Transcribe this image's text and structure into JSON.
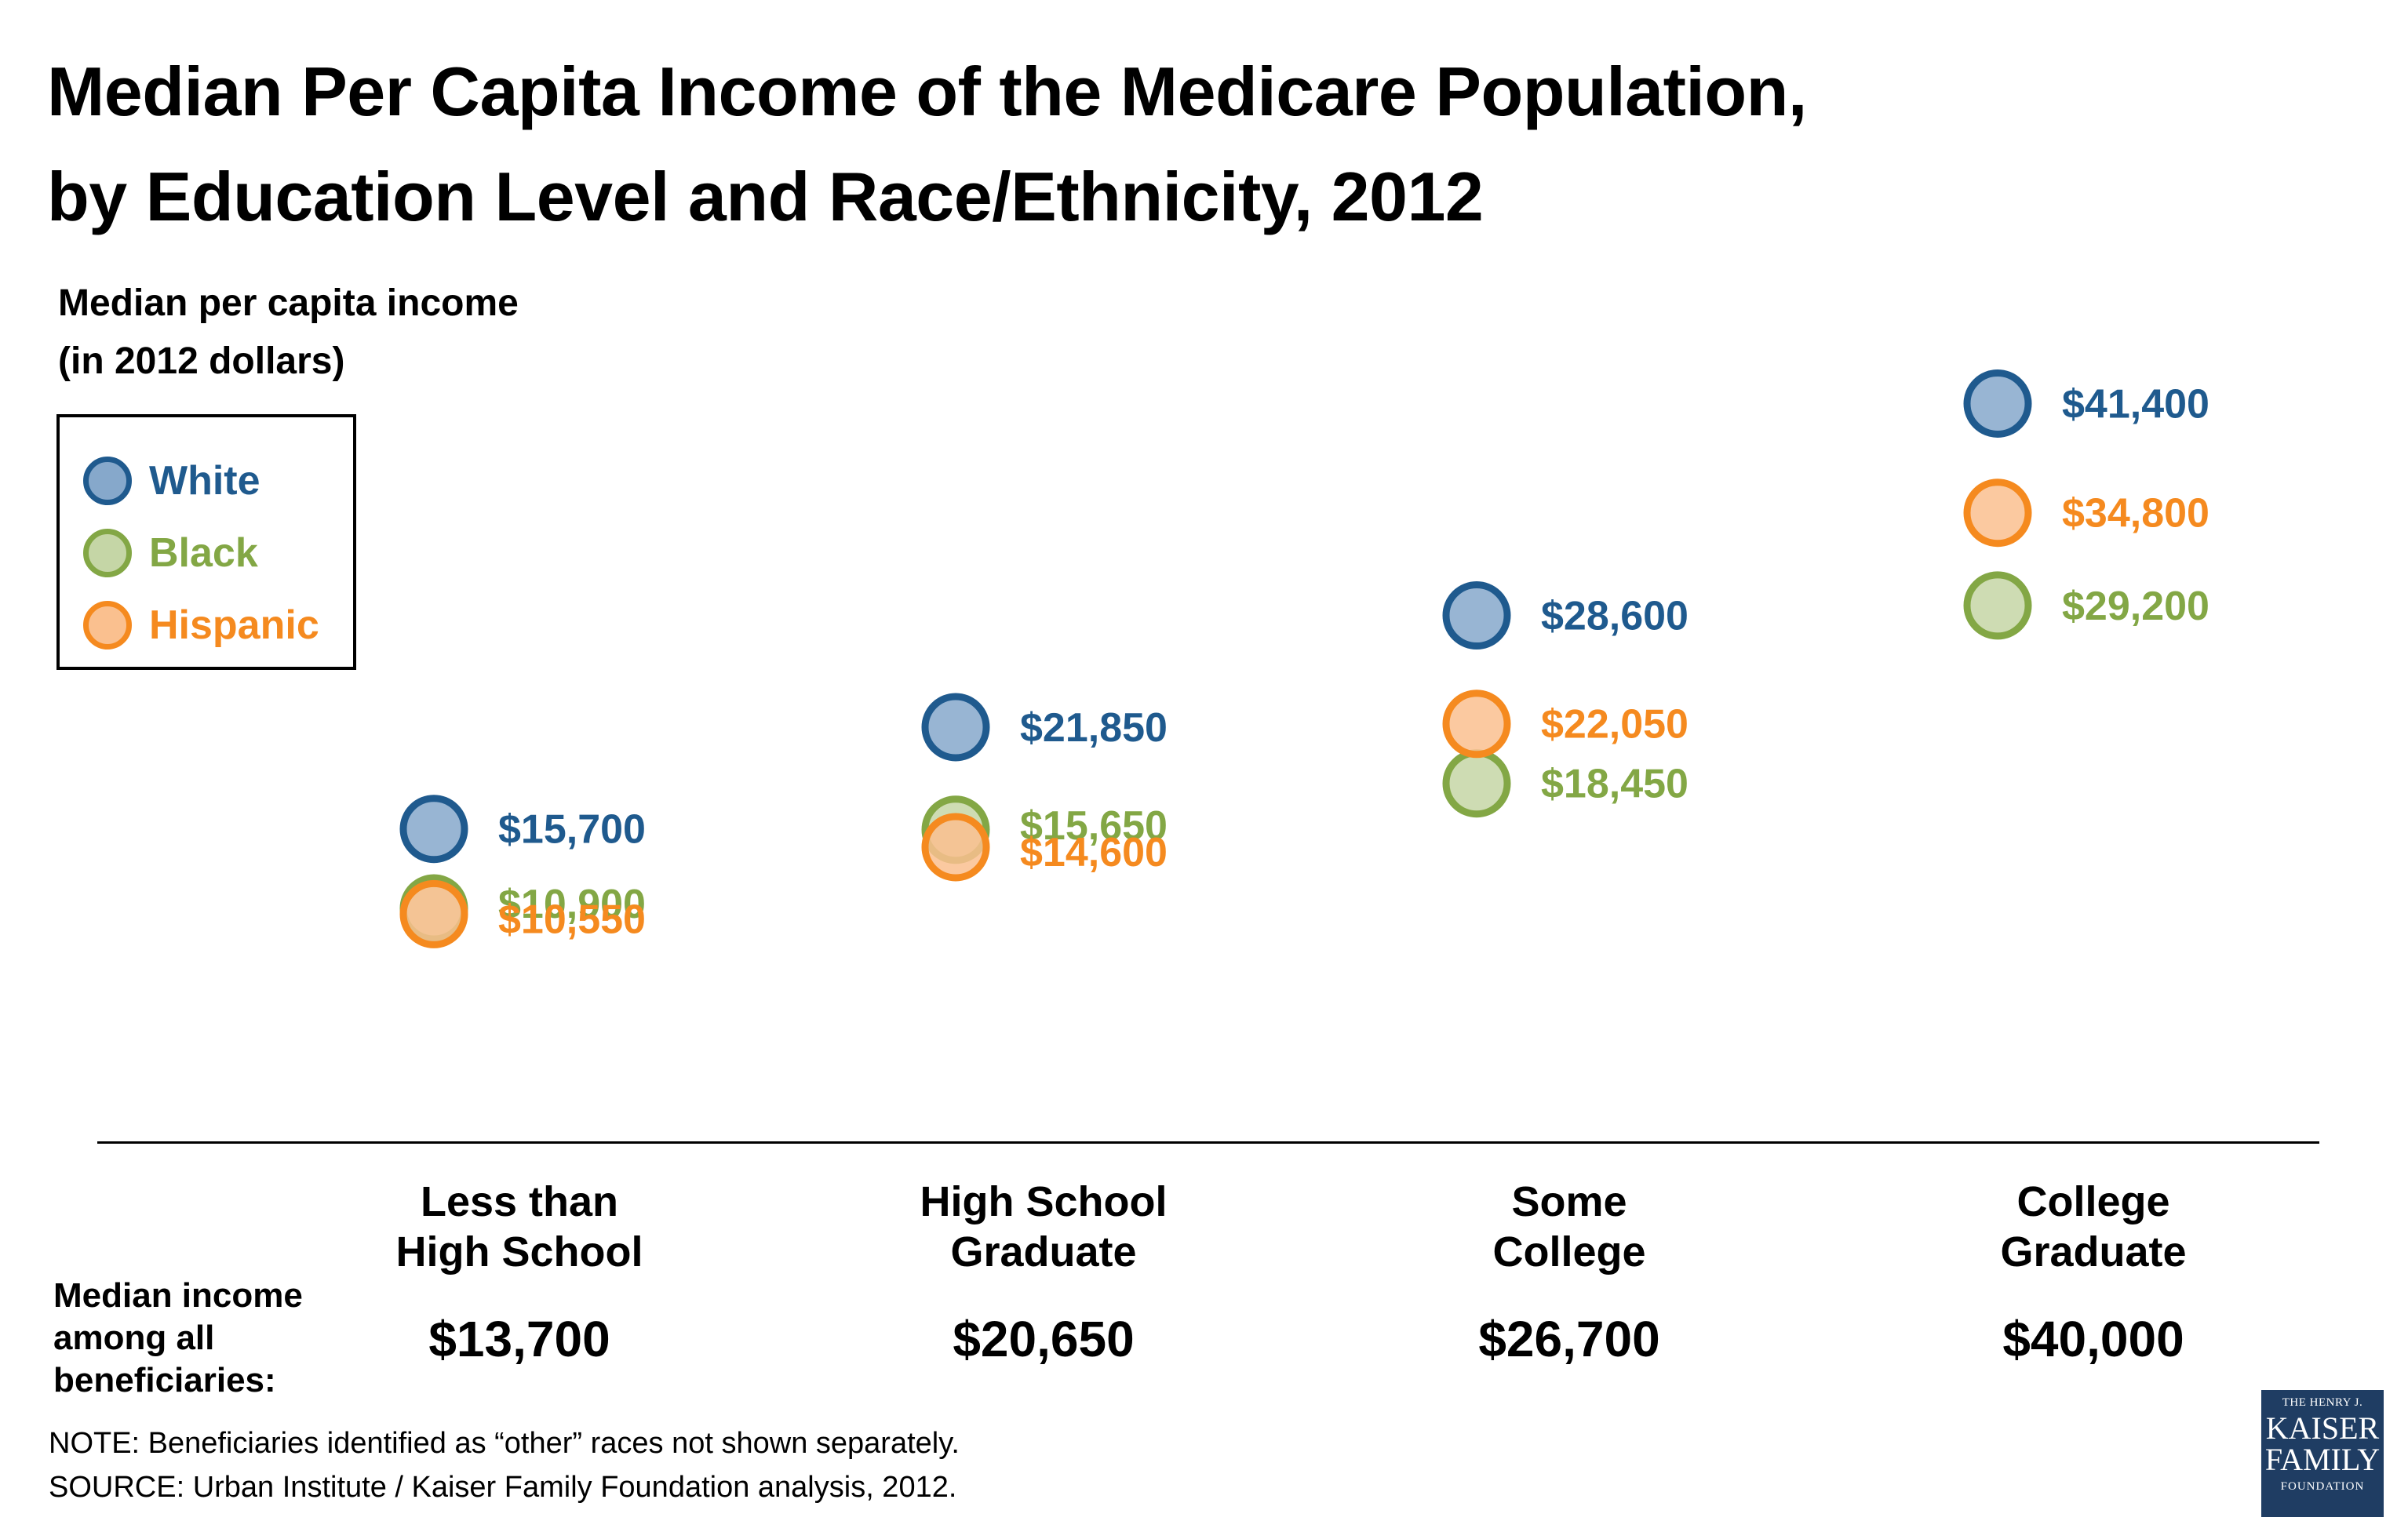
{
  "title_line1": "Median Per Capita Income of the Medicare Population,",
  "title_line2": "by Education Level and Race/Ethnicity, 2012",
  "unit_line1": "Median per capita income",
  "unit_line2": "(in 2012 dollars)",
  "colors": {
    "white_stroke": "#1f5a8e",
    "white_fill": "#86a8cb",
    "white_text": "#1f5a8e",
    "black_stroke": "#83a745",
    "black_fill": "#c5d6a6",
    "black_text": "#83a745",
    "hispanic_stroke": "#f58a1f",
    "hispanic_fill": "#fac08f",
    "hispanic_text": "#f58a1f"
  },
  "legend": [
    {
      "label": "White",
      "key": "white"
    },
    {
      "label": "Black",
      "key": "black"
    },
    {
      "label": "Hispanic",
      "key": "hispanic"
    }
  ],
  "chart_data": {
    "type": "scatter",
    "title": "Median Per Capita Income of the Medicare Population, by Education Level and Race/Ethnicity, 2012",
    "ylabel": "Median per capita income (in 2012 dollars)",
    "categories": [
      "Less than High School",
      "High School Graduate",
      "Some College",
      "College Graduate"
    ],
    "series": [
      {
        "name": "White",
        "key": "white",
        "values": [
          15700,
          21850,
          28600,
          41400
        ],
        "labels": [
          "$15,700",
          "$21,850",
          "$28,600",
          "$41,400"
        ]
      },
      {
        "name": "Black",
        "key": "black",
        "values": [
          10900,
          15650,
          18450,
          29200
        ],
        "labels": [
          "$10,900",
          "$15,650",
          "$18,450",
          "$29,200"
        ]
      },
      {
        "name": "Hispanic",
        "key": "hispanic",
        "values": [
          10550,
          14600,
          22050,
          34800
        ],
        "labels": [
          "$10,550",
          "$14,600",
          "$22,050",
          "$34,800"
        ]
      }
    ],
    "grid": false,
    "legend_position": "top-left"
  },
  "categories_display": [
    {
      "line1": "Less than",
      "line2": "High School",
      "overall": "$13,700"
    },
    {
      "line1": "High School",
      "line2": "Graduate",
      "overall": "$20,650"
    },
    {
      "line1": "Some",
      "line2": "College",
      "overall": "$26,700"
    },
    {
      "line1": "College",
      "line2": "Graduate",
      "overall": "$40,000"
    }
  ],
  "overall_label": "Median income among all beneficiaries:",
  "note": "NOTE: Beneficiaries identified as “other” races not shown separately.",
  "source": "SOURCE: Urban Institute / Kaiser Family Foundation analysis, 2012.",
  "logo": {
    "line1": "THE HENRY J.",
    "line2": "KAISER",
    "line3": "FAMILY",
    "line4": "FOUNDATION"
  }
}
